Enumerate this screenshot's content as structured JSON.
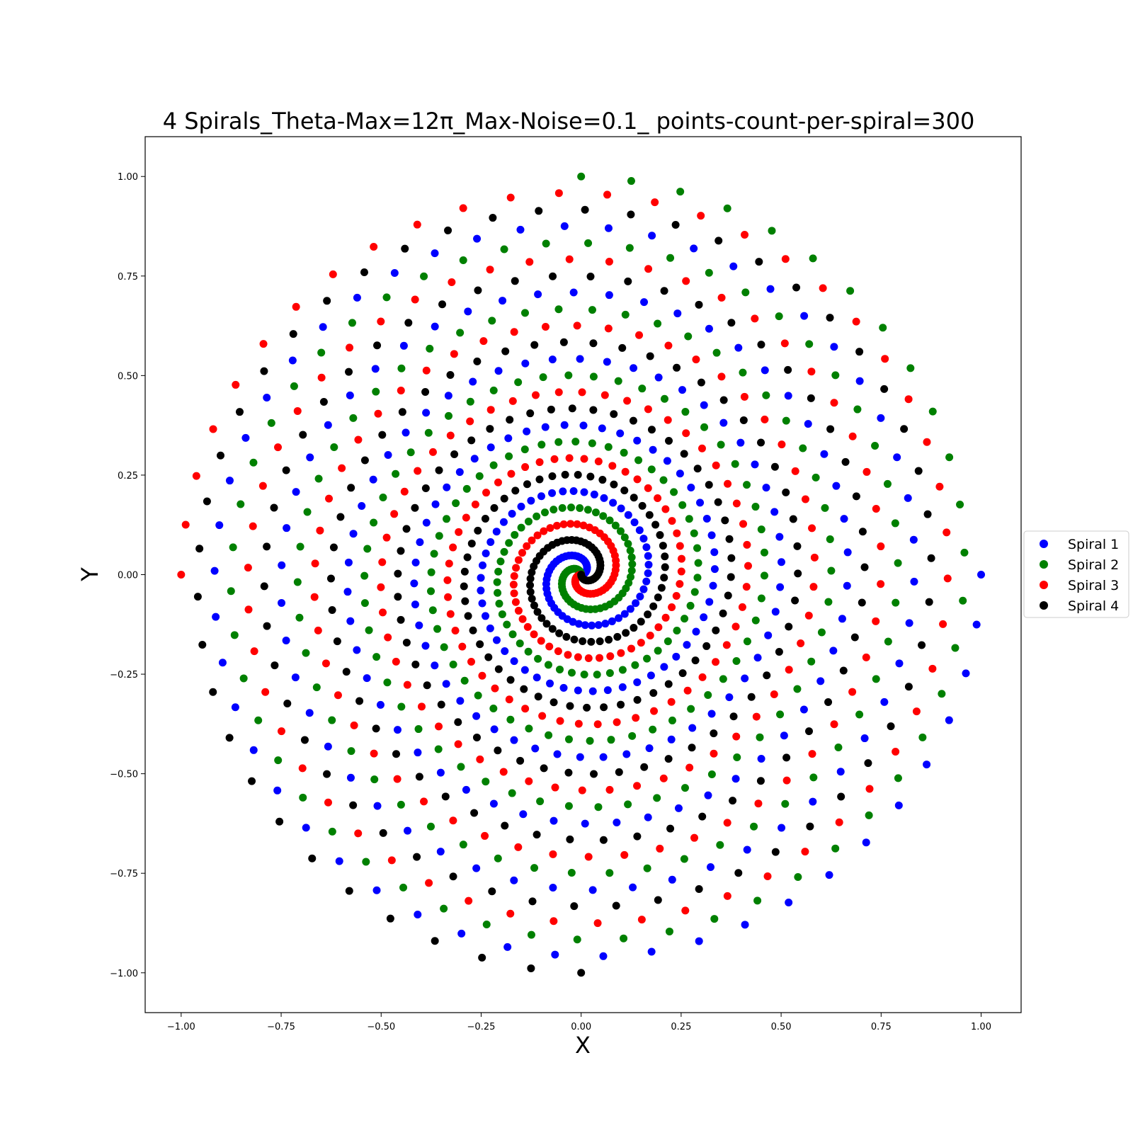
{
  "chart_data": {
    "type": "scatter",
    "title": "4 Spirals_Theta-Max=12π_Max-Noise=0.1_ points-count-per-spiral=300",
    "xlabel": "X",
    "ylabel": "Y",
    "xlim": [
      -1.09,
      1.1
    ],
    "ylim": [
      -1.1,
      1.1
    ],
    "xticks": [
      -1.0,
      -0.75,
      -0.5,
      -0.25,
      0.0,
      0.25,
      0.5,
      0.75,
      1.0
    ],
    "xtick_labels": [
      "−1.00",
      "−0.75",
      "−0.50",
      "−0.25",
      "0.00",
      "0.25",
      "0.50",
      "0.75",
      "1.00"
    ],
    "yticks": [
      1.0,
      0.75,
      0.5,
      0.25,
      0.0,
      -0.25,
      -0.5,
      -0.75,
      -1.0
    ],
    "ytick_labels": [
      "1.00",
      "0.75",
      "0.50",
      "0.25",
      "0.00",
      "−0.25",
      "−0.50",
      "−0.75",
      "−1.00"
    ],
    "grid": false,
    "legend_position": "center-right-outside",
    "theta_max_pi": 12,
    "points_per_spiral": 300,
    "max_noise": 0.1,
    "series": [
      {
        "name": "Spiral 1",
        "color": "#0000ff",
        "phase_turns": 0.0
      },
      {
        "name": "Spiral 2",
        "color": "#008000",
        "phase_turns": 0.25
      },
      {
        "name": "Spiral 3",
        "color": "#ff0000",
        "phase_turns": 0.5
      },
      {
        "name": "Spiral 4",
        "color": "#000000",
        "phase_turns": 0.75
      }
    ]
  }
}
